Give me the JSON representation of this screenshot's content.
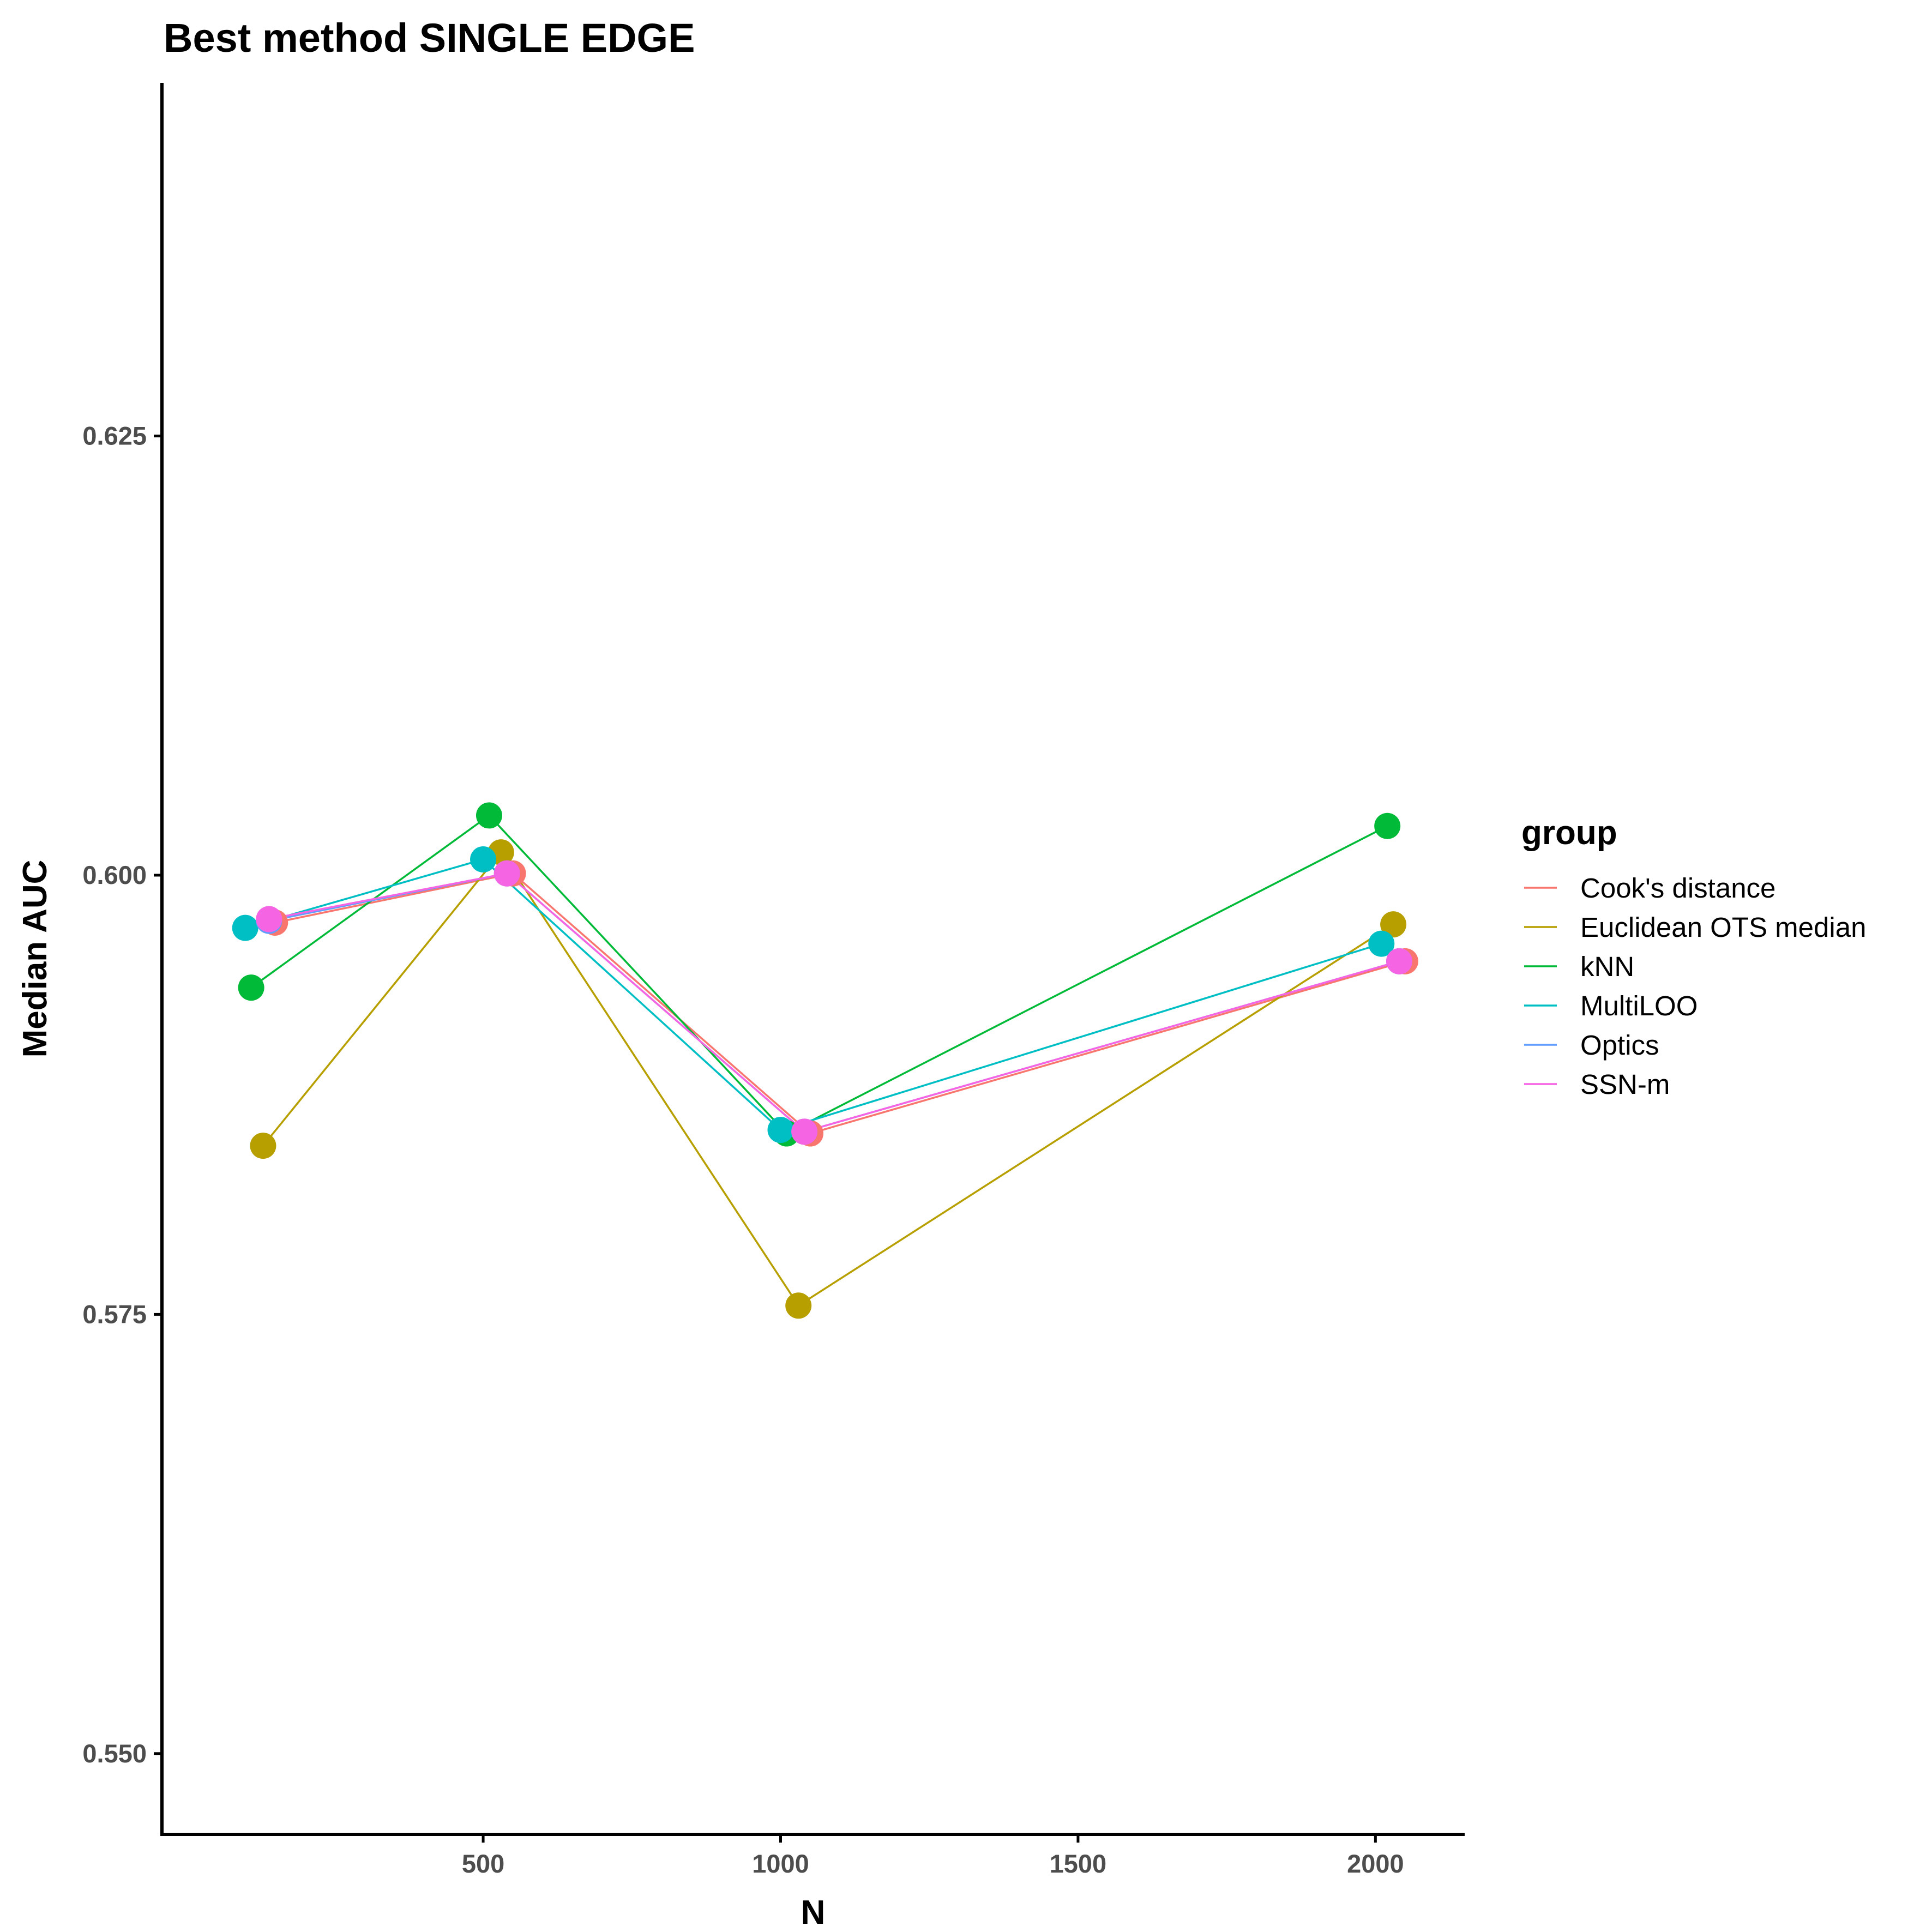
{
  "chart_data": {
    "type": "line",
    "title": "Best method SINGLE EDGE",
    "xlabel": "N",
    "ylabel": "Median AUC",
    "xlim": [
      -40,
      2150
    ],
    "ylim": [
      0.5454,
      0.6451
    ],
    "xticks": [
      500,
      1000,
      1500,
      2000
    ],
    "xtick_labels": [
      "500",
      "1000",
      "1500",
      "2000"
    ],
    "yticks": [
      0.55,
      0.575,
      0.6,
      0.625
    ],
    "ytick_labels": [
      "0.550",
      "0.575",
      "0.600",
      "0.625"
    ],
    "grid": false,
    "legend": {
      "title": "group",
      "position": "right"
    },
    "series": [
      {
        "name": "Cook's distance",
        "color": "#F8766D",
        "x": [
          150,
          550,
          1050,
          2050
        ],
        "y": [
          0.5973,
          0.6001,
          0.5853,
          0.5951
        ]
      },
      {
        "name": "Euclidean OTS median",
        "color": "#B79F00",
        "x": [
          130,
          530,
          1030,
          2030
        ],
        "y": [
          0.5846,
          0.6013,
          0.5755,
          0.5972
        ]
      },
      {
        "name": "kNN",
        "color": "#00BA38",
        "x": [
          110,
          510,
          1010,
          2020
        ],
        "y": [
          0.5936,
          0.6034,
          0.5853,
          0.6028
        ]
      },
      {
        "name": "MultiLOO",
        "color": "#00BFC4",
        "x": [
          100,
          500,
          1000,
          2010
        ],
        "y": [
          0.597,
          0.6009,
          0.5855,
          0.5961
        ]
      },
      {
        "name": "Optics",
        "color": "#619CFF",
        "x": [
          140,
          540,
          1040,
          2040
        ],
        "y": [
          0.5974,
          0.6001,
          0.5854,
          0.5951
        ]
      },
      {
        "name": "SSN-m",
        "color": "#F564E3",
        "x": [
          140,
          540,
          1040,
          2040
        ],
        "y": [
          0.5975,
          0.6001,
          0.5854,
          0.5951
        ]
      }
    ]
  }
}
